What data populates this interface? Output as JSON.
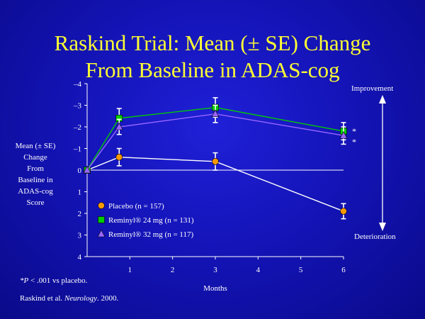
{
  "title_line1": "Raskind Trial: Mean (± SE) Change",
  "title_line2": "From Baseline in ADAS-cog",
  "y_axis_label_lines": [
    "Mean (± SE)",
    "Change",
    "From",
    "Baseline in",
    "ADAS-cog",
    "Score"
  ],
  "footnote_p": "*P < .001 vs placebo.",
  "citation_authors": "Raskind et al. ",
  "citation_journal": "Neurology",
  "citation_year": ". 2000.",
  "colors": {
    "title": "#ffff33",
    "placebo": "#ff9900",
    "reminyl24": "#00cc00",
    "reminyl32": "#9966ff",
    "axis": "#ffffff"
  },
  "chart_data": {
    "type": "line",
    "xlabel": "Months",
    "ylabel": "Mean (± SE) Change From Baseline in ADAS-cog Score",
    "xlim": [
      0,
      6
    ],
    "ylim": [
      4,
      -4
    ],
    "y_inverted": true,
    "x_ticks": [
      1,
      2,
      3,
      4,
      5,
      6
    ],
    "y_ticks": [
      -4,
      -3,
      -2,
      -1,
      0,
      1,
      2,
      3,
      4
    ],
    "y_tick_labels": [
      "–4",
      "–3",
      "–2",
      "–1",
      "0",
      "1",
      "2",
      "3",
      "4"
    ],
    "reference_line": 0,
    "legend_position": "bottom-left",
    "annotations": {
      "top": "Improvement",
      "bottom": "Deterioration",
      "significance": "*"
    },
    "series": [
      {
        "name": "Placebo (n = 157)",
        "color": "#ff9900",
        "marker": "circle",
        "x": [
          0,
          0.75,
          3,
          6
        ],
        "y": [
          0,
          -0.6,
          -0.4,
          1.9
        ],
        "se": [
          0,
          0.4,
          0.4,
          0.35
        ]
      },
      {
        "name": "Reminyl® 24 mg (n = 131)",
        "color": "#00cc00",
        "marker": "square",
        "x": [
          0,
          0.75,
          3,
          6
        ],
        "y": [
          0,
          -2.4,
          -2.9,
          -1.8
        ],
        "se": [
          0,
          0.45,
          0.45,
          0.4
        ]
      },
      {
        "name": "Reminyl® 32 mg (n = 117)",
        "color": "#9966ff",
        "marker": "triangle",
        "x": [
          0,
          0.75,
          3,
          6
        ],
        "y": [
          0,
          -2.0,
          -2.6,
          -1.6
        ],
        "se": [
          0,
          0.35,
          0.4,
          0.4
        ]
      }
    ],
    "significant_series": [
      "Reminyl® 24 mg (n = 131)",
      "Reminyl® 32 mg (n = 117)"
    ]
  }
}
